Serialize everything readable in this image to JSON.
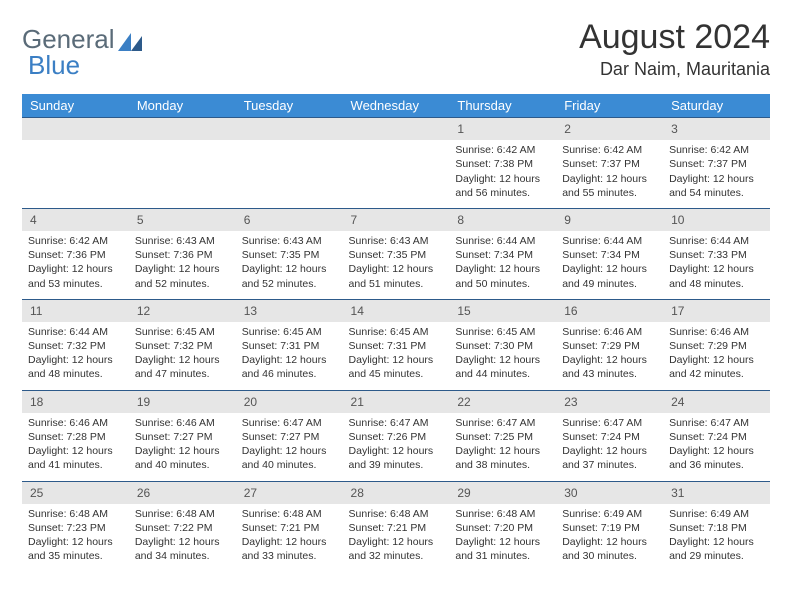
{
  "logo": {
    "text_a": "General",
    "text_b": "Blue"
  },
  "title": "August 2024",
  "location": "Dar Naim, Mauritania",
  "colors": {
    "header_bg": "#3b8bd4",
    "header_text": "#ffffff",
    "row_border": "#2d5a8a",
    "daynum_bg": "#e6e6e6",
    "logo_gray": "#5a6b78",
    "logo_blue": "#3b7fc4"
  },
  "weekdays": [
    "Sunday",
    "Monday",
    "Tuesday",
    "Wednesday",
    "Thursday",
    "Friday",
    "Saturday"
  ],
  "weeks": [
    [
      {
        "n": "",
        "sr": "",
        "ss": "",
        "dl": ""
      },
      {
        "n": "",
        "sr": "",
        "ss": "",
        "dl": ""
      },
      {
        "n": "",
        "sr": "",
        "ss": "",
        "dl": ""
      },
      {
        "n": "",
        "sr": "",
        "ss": "",
        "dl": ""
      },
      {
        "n": "1",
        "sr": "Sunrise: 6:42 AM",
        "ss": "Sunset: 7:38 PM",
        "dl": "Daylight: 12 hours and 56 minutes."
      },
      {
        "n": "2",
        "sr": "Sunrise: 6:42 AM",
        "ss": "Sunset: 7:37 PM",
        "dl": "Daylight: 12 hours and 55 minutes."
      },
      {
        "n": "3",
        "sr": "Sunrise: 6:42 AM",
        "ss": "Sunset: 7:37 PM",
        "dl": "Daylight: 12 hours and 54 minutes."
      }
    ],
    [
      {
        "n": "4",
        "sr": "Sunrise: 6:42 AM",
        "ss": "Sunset: 7:36 PM",
        "dl": "Daylight: 12 hours and 53 minutes."
      },
      {
        "n": "5",
        "sr": "Sunrise: 6:43 AM",
        "ss": "Sunset: 7:36 PM",
        "dl": "Daylight: 12 hours and 52 minutes."
      },
      {
        "n": "6",
        "sr": "Sunrise: 6:43 AM",
        "ss": "Sunset: 7:35 PM",
        "dl": "Daylight: 12 hours and 52 minutes."
      },
      {
        "n": "7",
        "sr": "Sunrise: 6:43 AM",
        "ss": "Sunset: 7:35 PM",
        "dl": "Daylight: 12 hours and 51 minutes."
      },
      {
        "n": "8",
        "sr": "Sunrise: 6:44 AM",
        "ss": "Sunset: 7:34 PM",
        "dl": "Daylight: 12 hours and 50 minutes."
      },
      {
        "n": "9",
        "sr": "Sunrise: 6:44 AM",
        "ss": "Sunset: 7:34 PM",
        "dl": "Daylight: 12 hours and 49 minutes."
      },
      {
        "n": "10",
        "sr": "Sunrise: 6:44 AM",
        "ss": "Sunset: 7:33 PM",
        "dl": "Daylight: 12 hours and 48 minutes."
      }
    ],
    [
      {
        "n": "11",
        "sr": "Sunrise: 6:44 AM",
        "ss": "Sunset: 7:32 PM",
        "dl": "Daylight: 12 hours and 48 minutes."
      },
      {
        "n": "12",
        "sr": "Sunrise: 6:45 AM",
        "ss": "Sunset: 7:32 PM",
        "dl": "Daylight: 12 hours and 47 minutes."
      },
      {
        "n": "13",
        "sr": "Sunrise: 6:45 AM",
        "ss": "Sunset: 7:31 PM",
        "dl": "Daylight: 12 hours and 46 minutes."
      },
      {
        "n": "14",
        "sr": "Sunrise: 6:45 AM",
        "ss": "Sunset: 7:31 PM",
        "dl": "Daylight: 12 hours and 45 minutes."
      },
      {
        "n": "15",
        "sr": "Sunrise: 6:45 AM",
        "ss": "Sunset: 7:30 PM",
        "dl": "Daylight: 12 hours and 44 minutes."
      },
      {
        "n": "16",
        "sr": "Sunrise: 6:46 AM",
        "ss": "Sunset: 7:29 PM",
        "dl": "Daylight: 12 hours and 43 minutes."
      },
      {
        "n": "17",
        "sr": "Sunrise: 6:46 AM",
        "ss": "Sunset: 7:29 PM",
        "dl": "Daylight: 12 hours and 42 minutes."
      }
    ],
    [
      {
        "n": "18",
        "sr": "Sunrise: 6:46 AM",
        "ss": "Sunset: 7:28 PM",
        "dl": "Daylight: 12 hours and 41 minutes."
      },
      {
        "n": "19",
        "sr": "Sunrise: 6:46 AM",
        "ss": "Sunset: 7:27 PM",
        "dl": "Daylight: 12 hours and 40 minutes."
      },
      {
        "n": "20",
        "sr": "Sunrise: 6:47 AM",
        "ss": "Sunset: 7:27 PM",
        "dl": "Daylight: 12 hours and 40 minutes."
      },
      {
        "n": "21",
        "sr": "Sunrise: 6:47 AM",
        "ss": "Sunset: 7:26 PM",
        "dl": "Daylight: 12 hours and 39 minutes."
      },
      {
        "n": "22",
        "sr": "Sunrise: 6:47 AM",
        "ss": "Sunset: 7:25 PM",
        "dl": "Daylight: 12 hours and 38 minutes."
      },
      {
        "n": "23",
        "sr": "Sunrise: 6:47 AM",
        "ss": "Sunset: 7:24 PM",
        "dl": "Daylight: 12 hours and 37 minutes."
      },
      {
        "n": "24",
        "sr": "Sunrise: 6:47 AM",
        "ss": "Sunset: 7:24 PM",
        "dl": "Daylight: 12 hours and 36 minutes."
      }
    ],
    [
      {
        "n": "25",
        "sr": "Sunrise: 6:48 AM",
        "ss": "Sunset: 7:23 PM",
        "dl": "Daylight: 12 hours and 35 minutes."
      },
      {
        "n": "26",
        "sr": "Sunrise: 6:48 AM",
        "ss": "Sunset: 7:22 PM",
        "dl": "Daylight: 12 hours and 34 minutes."
      },
      {
        "n": "27",
        "sr": "Sunrise: 6:48 AM",
        "ss": "Sunset: 7:21 PM",
        "dl": "Daylight: 12 hours and 33 minutes."
      },
      {
        "n": "28",
        "sr": "Sunrise: 6:48 AM",
        "ss": "Sunset: 7:21 PM",
        "dl": "Daylight: 12 hours and 32 minutes."
      },
      {
        "n": "29",
        "sr": "Sunrise: 6:48 AM",
        "ss": "Sunset: 7:20 PM",
        "dl": "Daylight: 12 hours and 31 minutes."
      },
      {
        "n": "30",
        "sr": "Sunrise: 6:49 AM",
        "ss": "Sunset: 7:19 PM",
        "dl": "Daylight: 12 hours and 30 minutes."
      },
      {
        "n": "31",
        "sr": "Sunrise: 6:49 AM",
        "ss": "Sunset: 7:18 PM",
        "dl": "Daylight: 12 hours and 29 minutes."
      }
    ]
  ]
}
